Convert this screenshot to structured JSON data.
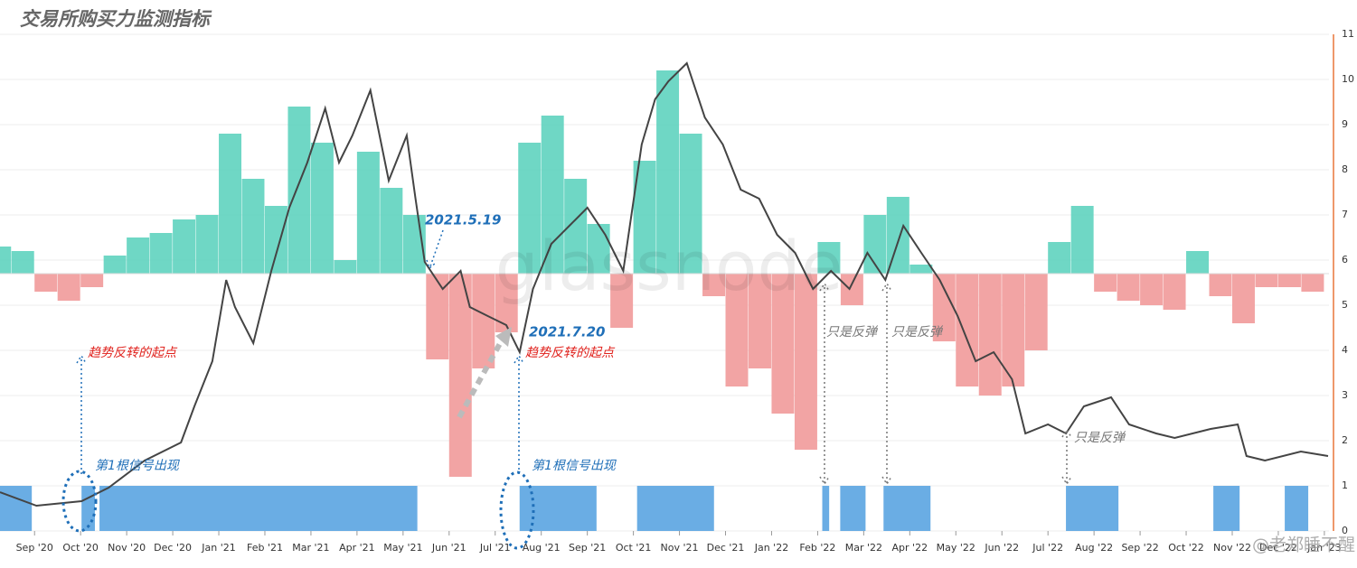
{
  "chart_data": {
    "type": "line",
    "title": "交易所购买力监测指标",
    "watermark": "glassnode",
    "credit": "@老郑睡不醒",
    "xlim": [
      -0.75,
      28.1
    ],
    "xticks": [
      {
        "value": 0,
        "label": "Sep '20"
      },
      {
        "value": 1,
        "label": "Oct '20"
      },
      {
        "value": 2,
        "label": "Nov '20"
      },
      {
        "value": 3,
        "label": "Dec '20"
      },
      {
        "value": 4,
        "label": "Jan '21"
      },
      {
        "value": 5,
        "label": "Feb '21"
      },
      {
        "value": 6,
        "label": "Mar '21"
      },
      {
        "value": 7,
        "label": "Apr '21"
      },
      {
        "value": 8,
        "label": "May '21"
      },
      {
        "value": 9,
        "label": "Jun '21"
      },
      {
        "value": 10,
        "label": "Jul '21"
      },
      {
        "value": 11,
        "label": "Aug '21"
      },
      {
        "value": 12,
        "label": "Sep '21"
      },
      {
        "value": 13,
        "label": "Oct '21"
      },
      {
        "value": 14,
        "label": "Nov '21"
      },
      {
        "value": 15,
        "label": "Dec '21"
      },
      {
        "value": 16,
        "label": "Jan '22"
      },
      {
        "value": 17,
        "label": "Feb '22"
      },
      {
        "value": 18,
        "label": "Mar '22"
      },
      {
        "value": 19,
        "label": "Apr '22"
      },
      {
        "value": 20,
        "label": "May '22"
      },
      {
        "value": 21,
        "label": "Jun '22"
      },
      {
        "value": 22,
        "label": "Jul '22"
      },
      {
        "value": 23,
        "label": "Aug '22"
      },
      {
        "value": 24,
        "label": "Sep '22"
      },
      {
        "value": 25,
        "label": "Oct '22"
      },
      {
        "value": 26,
        "label": "Nov '22"
      },
      {
        "value": 27,
        "label": "Dec '22"
      },
      {
        "value": 28,
        "label": "Jan '23"
      }
    ],
    "ylim": [
      0,
      11
    ],
    "yticks": [
      0,
      1,
      2,
      3,
      4,
      5,
      6,
      7,
      8,
      9,
      10,
      11
    ],
    "grid": true,
    "line": {
      "color": "#444444",
      "x": [
        -0.75,
        0.04,
        1.02,
        1.61,
        2.39,
        3.18,
        3.47,
        3.86,
        4.16,
        4.35,
        4.75,
        5.14,
        5.53,
        5.92,
        6.31,
        6.61,
        6.9,
        7.29,
        7.69,
        8.08,
        8.27,
        8.47,
        8.86,
        9.25,
        9.45,
        9.84,
        10.24,
        10.53,
        10.82,
        11.22,
        11.61,
        12.0,
        12.39,
        12.78,
        13.18,
        13.47,
        13.76,
        14.16,
        14.55,
        14.94,
        15.33,
        15.73,
        16.12,
        16.51,
        16.9,
        17.29,
        17.69,
        18.08,
        18.47,
        18.86,
        19.25,
        19.65,
        20.04,
        20.43,
        20.82,
        21.22,
        21.51,
        22.0,
        22.39,
        22.78,
        23.37,
        23.76,
        24.35,
        24.75,
        25.53,
        26.12,
        26.31,
        26.71,
        27.49,
        28.08
      ],
      "values": [
        0.86,
        0.56,
        0.66,
        0.96,
        1.56,
        1.96,
        2.76,
        3.76,
        5.56,
        4.96,
        4.16,
        5.76,
        7.16,
        8.16,
        9.36,
        8.16,
        8.76,
        9.76,
        7.76,
        8.76,
        7.36,
        5.96,
        5.36,
        5.76,
        4.96,
        4.76,
        4.56,
        3.96,
        5.36,
        6.36,
        6.76,
        7.16,
        6.56,
        5.76,
        8.56,
        9.56,
        9.96,
        10.36,
        9.16,
        8.56,
        7.56,
        7.36,
        6.56,
        6.16,
        5.36,
        5.76,
        5.36,
        6.16,
        5.56,
        6.76,
        6.16,
        5.56,
        4.76,
        3.76,
        3.96,
        3.36,
        2.16,
        2.36,
        2.16,
        2.76,
        2.96,
        2.36,
        2.16,
        2.06,
        2.26,
        2.36,
        1.66,
        1.56,
        1.76,
        1.66
      ]
    },
    "oscillator": {
      "baseline": 5.7,
      "positive_color": "#5fd3bf",
      "negative_color": "#f19a9a",
      "x": [
        -0.75,
        -0.25,
        0.25,
        0.75,
        1.25,
        1.75,
        2.25,
        2.75,
        3.25,
        3.75,
        4.25,
        4.75,
        5.25,
        5.75,
        6.25,
        6.75,
        7.25,
        7.75,
        8.25,
        8.75,
        9.25,
        9.75,
        10.25,
        10.75,
        11.25,
        11.75,
        12.25,
        12.75,
        13.25,
        13.75,
        14.25,
        14.75,
        15.25,
        15.75,
        16.25,
        16.75,
        17.25,
        17.75,
        18.25,
        18.75,
        19.25,
        19.75,
        20.25,
        20.75,
        21.25,
        21.75,
        22.25,
        22.75,
        23.25,
        23.75,
        24.25,
        24.75,
        25.25,
        25.75,
        26.25,
        26.75,
        27.25,
        27.75
      ],
      "values": [
        6.3,
        6.2,
        5.3,
        5.1,
        5.4,
        6.1,
        6.5,
        6.6,
        6.9,
        7.0,
        8.8,
        7.8,
        7.2,
        9.4,
        8.6,
        6.0,
        8.4,
        7.6,
        7.0,
        3.8,
        1.2,
        3.6,
        4.4,
        8.6,
        9.2,
        7.8,
        6.8,
        4.5,
        8.2,
        10.2,
        8.8,
        5.2,
        3.2,
        3.6,
        2.6,
        1.8,
        6.4,
        5.0,
        7.0,
        7.4,
        5.9,
        4.2,
        3.2,
        3.0,
        3.2,
        4.0,
        6.4,
        7.2,
        5.3,
        5.1,
        5.0,
        4.9,
        6.2,
        5.2,
        4.6,
        5.4,
        5.4,
        5.3
      ]
    },
    "signal_level": 1,
    "signal_color": "#6aade4",
    "signals": [
      {
        "start": -0.75,
        "end": -0.06
      },
      {
        "start": 1.02,
        "end": 1.31
      },
      {
        "start": 1.41,
        "end": 8.31
      },
      {
        "start": 10.53,
        "end": 12.2
      },
      {
        "start": 13.08,
        "end": 14.75
      },
      {
        "start": 17.1,
        "end": 17.25
      },
      {
        "start": 17.49,
        "end": 18.04
      },
      {
        "start": 18.43,
        "end": 19.45
      },
      {
        "start": 22.39,
        "end": 23.53
      },
      {
        "start": 25.59,
        "end": 26.16
      },
      {
        "start": 27.14,
        "end": 27.65
      }
    ],
    "annotations": [
      "2021.5.19",
      "2021.7.20",
      "趋势反转的起点",
      "趋势反转的起点",
      "第1根信号出现",
      "第1根信号出现",
      "只是反弹",
      "只是反弹",
      "只是反弹"
    ]
  }
}
